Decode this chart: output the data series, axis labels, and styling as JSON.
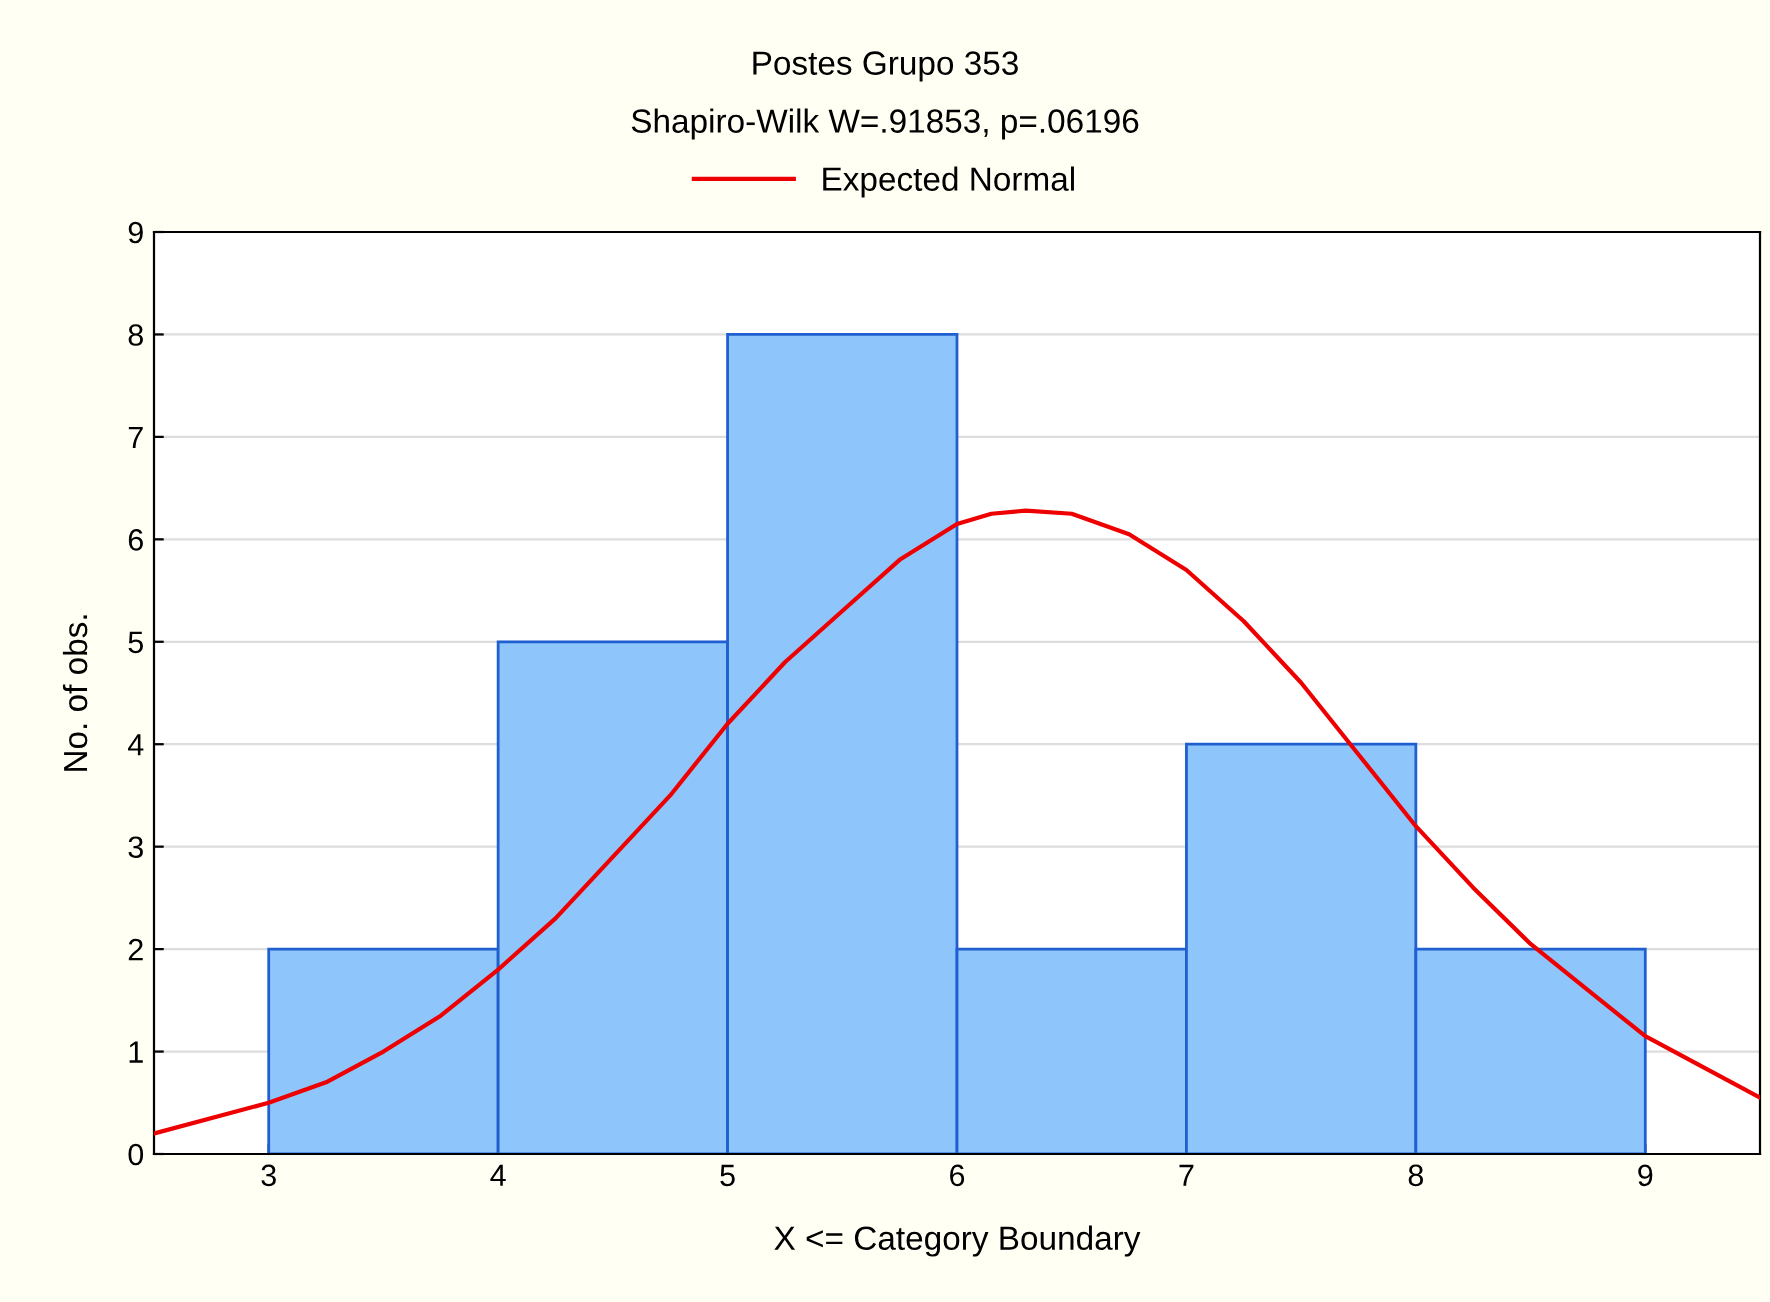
{
  "chart_data": {
    "type": "histogram",
    "title": "Postes Grupo 353",
    "subtitle": "Shapiro-Wilk W=.91853, p=.06196",
    "xlabel": "X <= Category Boundary",
    "ylabel": "No. of obs.",
    "bins": [
      3,
      4,
      5,
      6,
      7,
      8,
      9
    ],
    "values": [
      2,
      5,
      8,
      2,
      4,
      2
    ],
    "color": "#8ec5fb",
    "series": [
      {
        "name": "Expected Normal",
        "type": "line",
        "color": "#ee0000",
        "x": [
          2.5,
          3,
          3.25,
          3.5,
          3.75,
          4,
          4.25,
          4.5,
          4.75,
          5,
          5.25,
          5.5,
          5.75,
          6,
          6.15,
          6.3,
          6.5,
          6.75,
          7,
          7.25,
          7.5,
          7.75,
          8,
          8.25,
          8.5,
          8.75,
          9,
          9.25,
          9.5
        ],
        "values": [
          0.2,
          0.5,
          0.7,
          1.0,
          1.35,
          1.8,
          2.3,
          2.9,
          3.5,
          4.2,
          4.8,
          5.3,
          5.8,
          6.15,
          6.25,
          6.28,
          6.25,
          6.05,
          5.7,
          5.2,
          4.6,
          3.9,
          3.2,
          2.6,
          2.05,
          1.6,
          1.15,
          0.85,
          0.55
        ]
      }
    ],
    "xlim": [
      2.5,
      9.5
    ],
    "xticks": [
      3,
      4,
      5,
      6,
      7,
      8,
      9
    ],
    "ylim": [
      0,
      9
    ],
    "yticks": [
      0,
      1,
      2,
      3,
      4,
      5,
      6,
      7,
      8,
      9
    ],
    "grid": "y",
    "legend": "top"
  }
}
